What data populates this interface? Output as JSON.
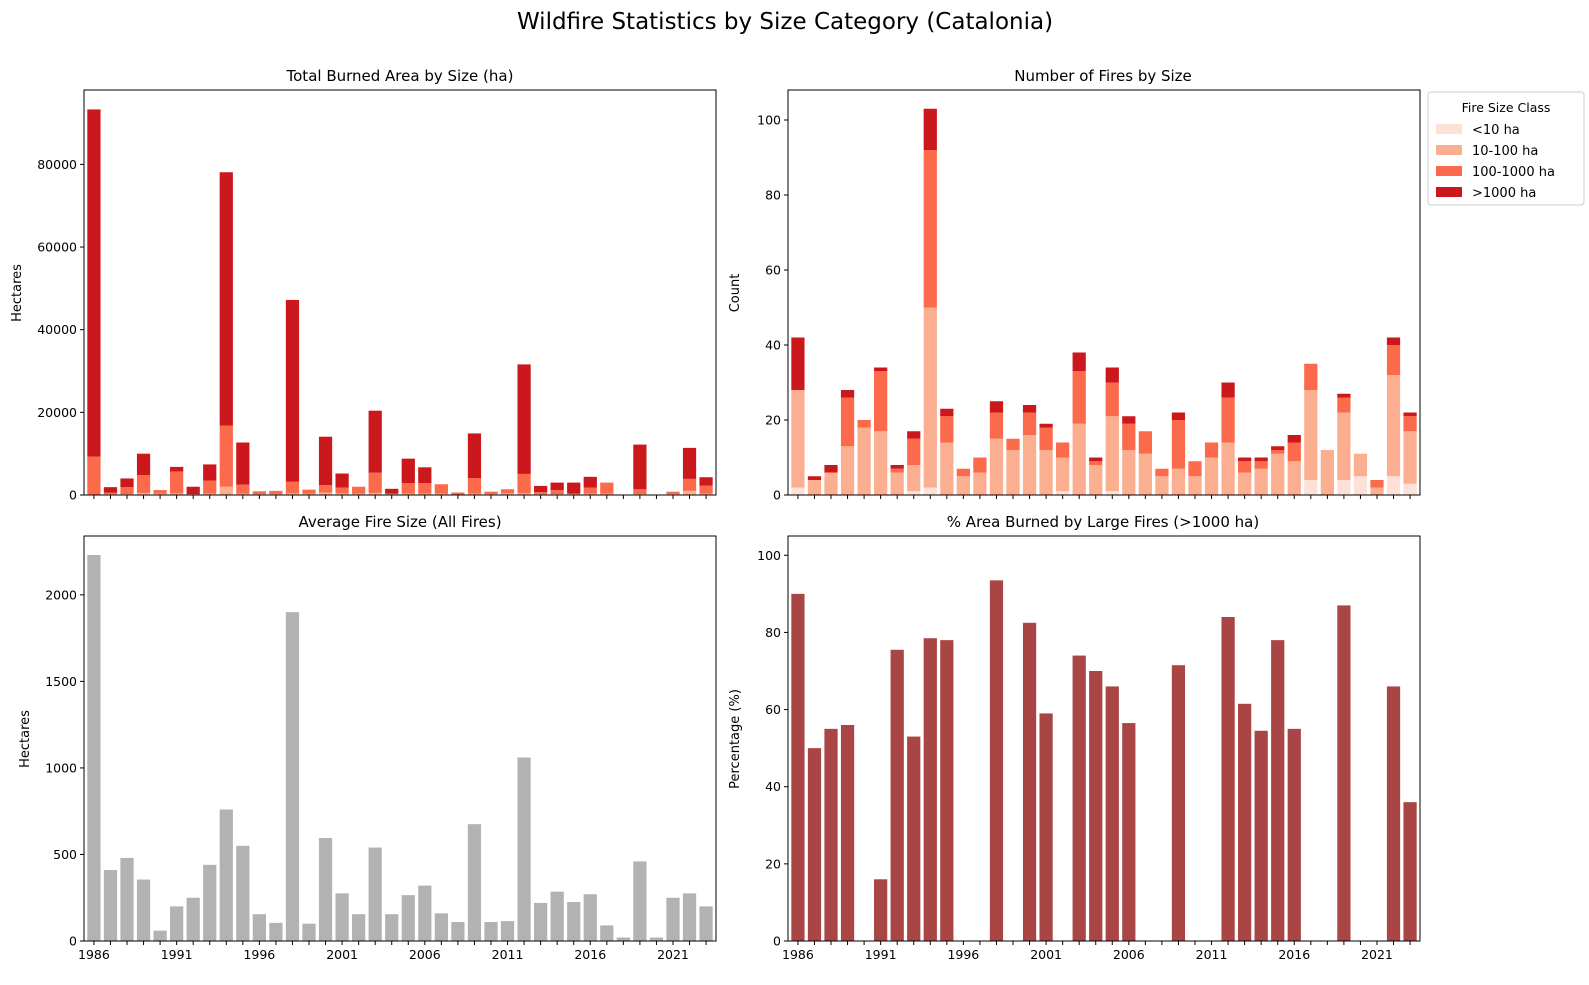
{
  "suptitle": "Wildfire Statistics by Size Category (Catalonia)",
  "colors": {
    "lt10": "#fde0d6",
    "s10_100": "#fcae91",
    "s100_1000": "#fb6a4a",
    "gt1000": "#cb181d",
    "avg": "#b2b2b2",
    "pct": "#a94545"
  },
  "legend": {
    "title": "Fire Size Class",
    "entries": [
      "<10 ha",
      "10-100 ha",
      "100-1000 ha",
      ">1000 ha"
    ]
  },
  "chart_data": [
    {
      "id": "area",
      "type": "bar",
      "stacked": true,
      "title": "Total Burned Area by Size (ha)",
      "ylabel": "Hectares",
      "xlabel": "",
      "ylim": [
        0,
        98000
      ],
      "yticks": [
        0,
        20000,
        40000,
        60000,
        80000
      ],
      "categories": [
        1986,
        1987,
        1988,
        1989,
        1990,
        1991,
        1992,
        1993,
        1994,
        1995,
        1996,
        1997,
        1998,
        1999,
        2000,
        2001,
        2002,
        2003,
        2004,
        2005,
        2006,
        2007,
        2008,
        2009,
        2010,
        2011,
        2012,
        2013,
        2014,
        2015,
        2016,
        2017,
        2018,
        2019,
        2020,
        2021,
        2022,
        2023
      ],
      "series": [
        {
          "name": "<10 ha",
          "values": [
            0,
            0,
            0,
            0,
            0,
            0,
            0,
            0,
            0,
            0,
            0,
            0,
            0,
            0,
            0,
            0,
            0,
            0,
            0,
            0,
            0,
            0,
            0,
            0,
            0,
            0,
            0,
            0,
            0,
            0,
            0,
            0,
            0,
            0,
            0,
            0,
            0,
            0
          ]
        },
        {
          "name": "10-100 ha",
          "values": [
            100,
            200,
            200,
            500,
            300,
            400,
            200,
            300,
            2000,
            300,
            200,
            200,
            400,
            300,
            600,
            400,
            300,
            500,
            300,
            300,
            300,
            300,
            100,
            300,
            200,
            400,
            400,
            200,
            200,
            300,
            300,
            300,
            100,
            200,
            100,
            200,
            1000,
            300
          ]
        },
        {
          "name": "100-1000 ha",
          "values": [
            9200,
            400,
            1700,
            4300,
            900,
            5300,
            0,
            3200,
            14800,
            2200,
            700,
            800,
            2800,
            1000,
            1800,
            1400,
            1700,
            4900,
            0,
            2600,
            2600,
            2300,
            500,
            3800,
            600,
            1000,
            4700,
            500,
            1000,
            0,
            1500,
            2700,
            0,
            1200,
            0,
            600,
            2900,
            2000
          ]
        },
        {
          "name": ">1000 ha",
          "values": [
            84000,
            1300,
            2100,
            5200,
            0,
            1100,
            1800,
            3900,
            61300,
            10200,
            0,
            0,
            44000,
            0,
            11700,
            3400,
            0,
            15000,
            1200,
            5900,
            3800,
            0,
            0,
            10800,
            0,
            0,
            26500,
            1500,
            1800,
            2700,
            2600,
            0,
            0,
            10800,
            0,
            0,
            7500,
            2000
          ]
        }
      ]
    },
    {
      "id": "count",
      "type": "bar",
      "stacked": true,
      "title": "Number of Fires by Size",
      "ylabel": "Count",
      "xlabel": "",
      "ylim": [
        0,
        108
      ],
      "yticks": [
        0,
        20,
        40,
        60,
        80,
        100
      ],
      "categories": [
        1986,
        1987,
        1988,
        1989,
        1990,
        1991,
        1992,
        1993,
        1994,
        1995,
        1996,
        1997,
        1998,
        1999,
        2000,
        2001,
        2002,
        2003,
        2004,
        2005,
        2006,
        2007,
        2008,
        2009,
        2010,
        2011,
        2012,
        2013,
        2014,
        2015,
        2016,
        2017,
        2018,
        2019,
        2020,
        2021,
        2022,
        2023
      ],
      "series": [
        {
          "name": "<10 ha",
          "values": [
            2,
            0,
            0,
            0,
            0,
            0,
            0,
            1,
            2,
            0,
            0,
            0,
            0,
            0,
            0,
            0,
            1,
            0,
            0,
            1,
            0,
            0,
            0,
            0,
            0,
            0,
            0,
            0,
            0,
            0,
            0,
            4,
            0,
            4,
            5,
            0,
            5,
            3
          ]
        },
        {
          "name": "10-100 ha",
          "values": [
            26,
            4,
            6,
            13,
            18,
            17,
            6,
            7,
            48,
            14,
            5,
            6,
            15,
            12,
            16,
            12,
            9,
            19,
            8,
            20,
            12,
            11,
            5,
            7,
            5,
            10,
            14,
            6,
            7,
            11,
            9,
            24,
            12,
            18,
            6,
            2,
            27,
            14
          ]
        },
        {
          "name": "100-1000 ha",
          "values": [
            0,
            0,
            0,
            13,
            2,
            16,
            1,
            7,
            42,
            7,
            2,
            4,
            7,
            3,
            6,
            6,
            4,
            14,
            1,
            9,
            7,
            6,
            2,
            13,
            4,
            4,
            12,
            3,
            2,
            1,
            5,
            7,
            0,
            4,
            0,
            2,
            8,
            4
          ]
        },
        {
          "name": ">1000 ha",
          "values": [
            14,
            1,
            2,
            2,
            0,
            1,
            1,
            2,
            11,
            2,
            0,
            0,
            3,
            0,
            2,
            1,
            0,
            5,
            1,
            4,
            2,
            0,
            0,
            2,
            0,
            0,
            4,
            1,
            1,
            1,
            2,
            0,
            0,
            1,
            0,
            0,
            2,
            1
          ]
        }
      ]
    },
    {
      "id": "avg",
      "type": "bar",
      "title": "Average Fire Size (All Fires)",
      "ylabel": "Hectares",
      "xlabel": "",
      "ylim": [
        0,
        2340
      ],
      "yticks": [
        0,
        500,
        1000,
        1500,
        2000
      ],
      "xticklabels": [
        1986,
        1991,
        1996,
        2001,
        2006,
        2011,
        2016,
        2021
      ],
      "categories": [
        1986,
        1987,
        1988,
        1989,
        1990,
        1991,
        1992,
        1993,
        1994,
        1995,
        1996,
        1997,
        1998,
        1999,
        2000,
        2001,
        2002,
        2003,
        2004,
        2005,
        2006,
        2007,
        2008,
        2009,
        2010,
        2011,
        2012,
        2013,
        2014,
        2015,
        2016,
        2017,
        2018,
        2019,
        2020,
        2021,
        2022,
        2023
      ],
      "values": [
        2230,
        410,
        480,
        355,
        60,
        200,
        250,
        440,
        760,
        550,
        155,
        105,
        1900,
        100,
        595,
        275,
        155,
        540,
        155,
        265,
        320,
        160,
        110,
        675,
        110,
        115,
        1060,
        220,
        285,
        225,
        270,
        90,
        20,
        460,
        20,
        250,
        275,
        200
      ]
    },
    {
      "id": "pct",
      "type": "bar",
      "title": "% Area Burned by Large Fires (>1000 ha)",
      "ylabel": "Percentage (%)",
      "xlabel": "",
      "ylim": [
        0,
        105
      ],
      "yticks": [
        0,
        20,
        40,
        60,
        80,
        100
      ],
      "xticklabels": [
        1986,
        1991,
        1996,
        2001,
        2006,
        2011,
        2016,
        2021
      ],
      "categories": [
        1986,
        1987,
        1988,
        1989,
        1990,
        1991,
        1992,
        1993,
        1994,
        1995,
        1996,
        1997,
        1998,
        1999,
        2000,
        2001,
        2002,
        2003,
        2004,
        2005,
        2006,
        2007,
        2008,
        2009,
        2010,
        2011,
        2012,
        2013,
        2014,
        2015,
        2016,
        2017,
        2018,
        2019,
        2020,
        2021,
        2022,
        2023
      ],
      "values": [
        90,
        50,
        55,
        56,
        0,
        16,
        75.5,
        53,
        78.5,
        78,
        0,
        0,
        93.5,
        0,
        82.5,
        59,
        0,
        74,
        70,
        66,
        56.5,
        0,
        0,
        71.5,
        0,
        0,
        84,
        61.5,
        54.5,
        78,
        55,
        0,
        0,
        87,
        0,
        0,
        66,
        36
      ]
    }
  ]
}
